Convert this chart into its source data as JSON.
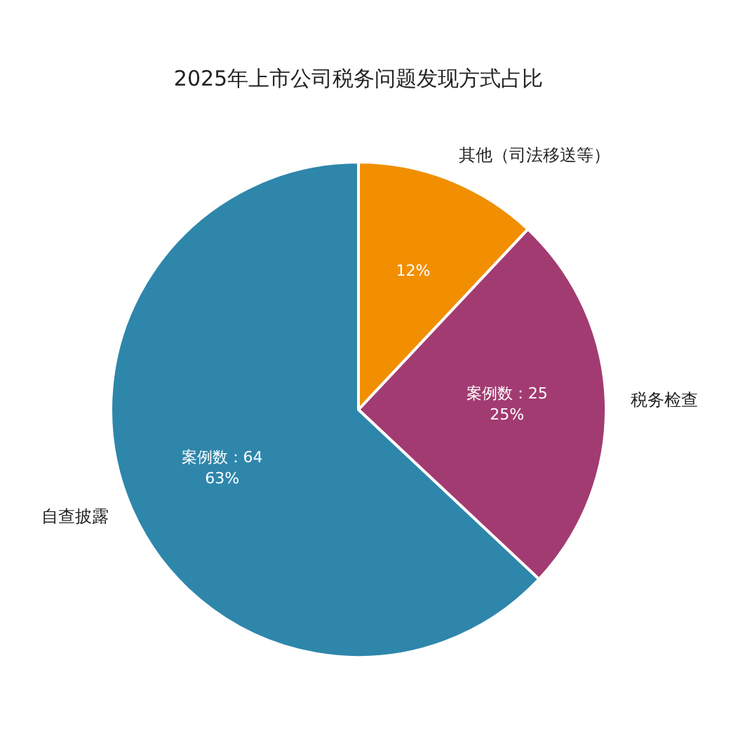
{
  "chart_data": {
    "type": "pie",
    "title": "2025年上市公司税务问题发现方式占比",
    "categories": [
      "其他（司法移送等）",
      "税务检查",
      "自查披露"
    ],
    "values": [
      12,
      25,
      63
    ],
    "colors": [
      "#f18f01",
      "#a23b72",
      "#2e86ab"
    ],
    "value_labels": [
      "12%",
      "案例数：25\n25%",
      "案例数：64\n63%"
    ],
    "legend": false
  }
}
